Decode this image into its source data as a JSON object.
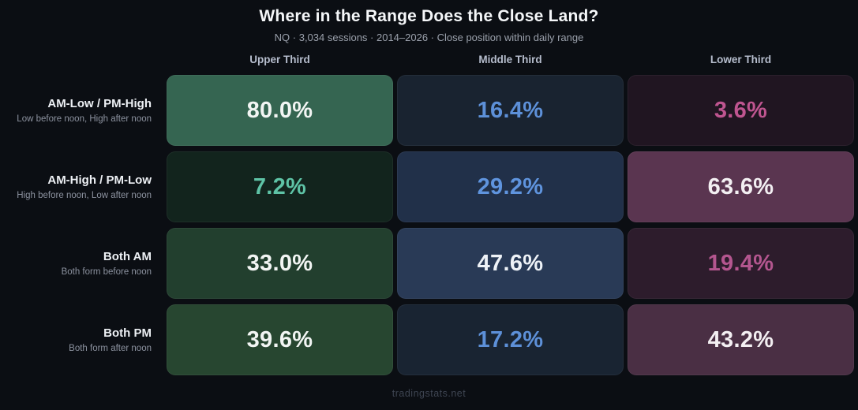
{
  "header": {
    "title": "Where in the Range Does the Close Land?",
    "subtitle": "NQ · 3,034 sessions · 2014–2026 · Close position within daily range"
  },
  "columns": [
    "Upper Third",
    "Middle Third",
    "Lower Third"
  ],
  "rows": [
    {
      "label": "AM-Low / PM-High",
      "sublabel": "Low before noon, High after noon",
      "cells": [
        {
          "value": "80.0%",
          "bg": "#356551",
          "fg": "#f2f5f3"
        },
        {
          "value": "16.4%",
          "bg": "#192330",
          "fg": "#5d90d8"
        },
        {
          "value": "3.6%",
          "bg": "#201521",
          "fg": "#bf5590"
        }
      ]
    },
    {
      "label": "AM-High / PM-Low",
      "sublabel": "High before noon, Low after noon",
      "cells": [
        {
          "value": "7.2%",
          "bg": "#12241d",
          "fg": "#5ec3a6"
        },
        {
          "value": "29.2%",
          "bg": "#213049",
          "fg": "#5f94de"
        },
        {
          "value": "63.6%",
          "bg": "#5a3550",
          "fg": "#f3eff2"
        }
      ]
    },
    {
      "label": "Both AM",
      "sublabel": "Both form before noon",
      "cells": [
        {
          "value": "33.0%",
          "bg": "#223f2e",
          "fg": "#f2f5f3"
        },
        {
          "value": "47.6%",
          "bg": "#293a56",
          "fg": "#eef2f7"
        },
        {
          "value": "19.4%",
          "bg": "#2d1c2c",
          "fg": "#b4568f"
        }
      ]
    },
    {
      "label": "Both PM",
      "sublabel": "Both form after noon",
      "cells": [
        {
          "value": "39.6%",
          "bg": "#274630",
          "fg": "#f2f5f3"
        },
        {
          "value": "17.2%",
          "bg": "#192432",
          "fg": "#5d90d8"
        },
        {
          "value": "43.2%",
          "bg": "#4a2f44",
          "fg": "#f3eff2"
        }
      ]
    }
  ],
  "footer": {
    "watermark": "tradingstats.net"
  },
  "chart_data": {
    "type": "heatmap",
    "title": "Where in the Range Does the Close Land?",
    "subtitle": "NQ · 3,034 sessions · 2014–2026 · Close position within daily range",
    "instrument": "NQ",
    "sessions": 3034,
    "period": "2014–2026",
    "columns": [
      "Upper Third",
      "Middle Third",
      "Lower Third"
    ],
    "rows": [
      "AM-Low / PM-High",
      "AM-High / PM-Low",
      "Both AM",
      "Both PM"
    ],
    "row_descriptions": [
      "Low before noon, High after noon",
      "High before noon, Low after noon",
      "Both form before noon",
      "Both form after noon"
    ],
    "values_percent": [
      [
        80.0,
        16.4,
        3.6
      ],
      [
        7.2,
        29.2,
        63.6
      ],
      [
        33.0,
        47.6,
        19.4
      ],
      [
        39.6,
        17.2,
        43.2
      ]
    ],
    "unit": "%",
    "column_color_themes": {
      "Upper Third": "#356551",
      "Middle Third": "#293a56",
      "Lower Third": "#5a3550"
    },
    "background": "#0b0e13",
    "legend_position": "none",
    "grid": false,
    "watermark": "tradingstats.net"
  }
}
